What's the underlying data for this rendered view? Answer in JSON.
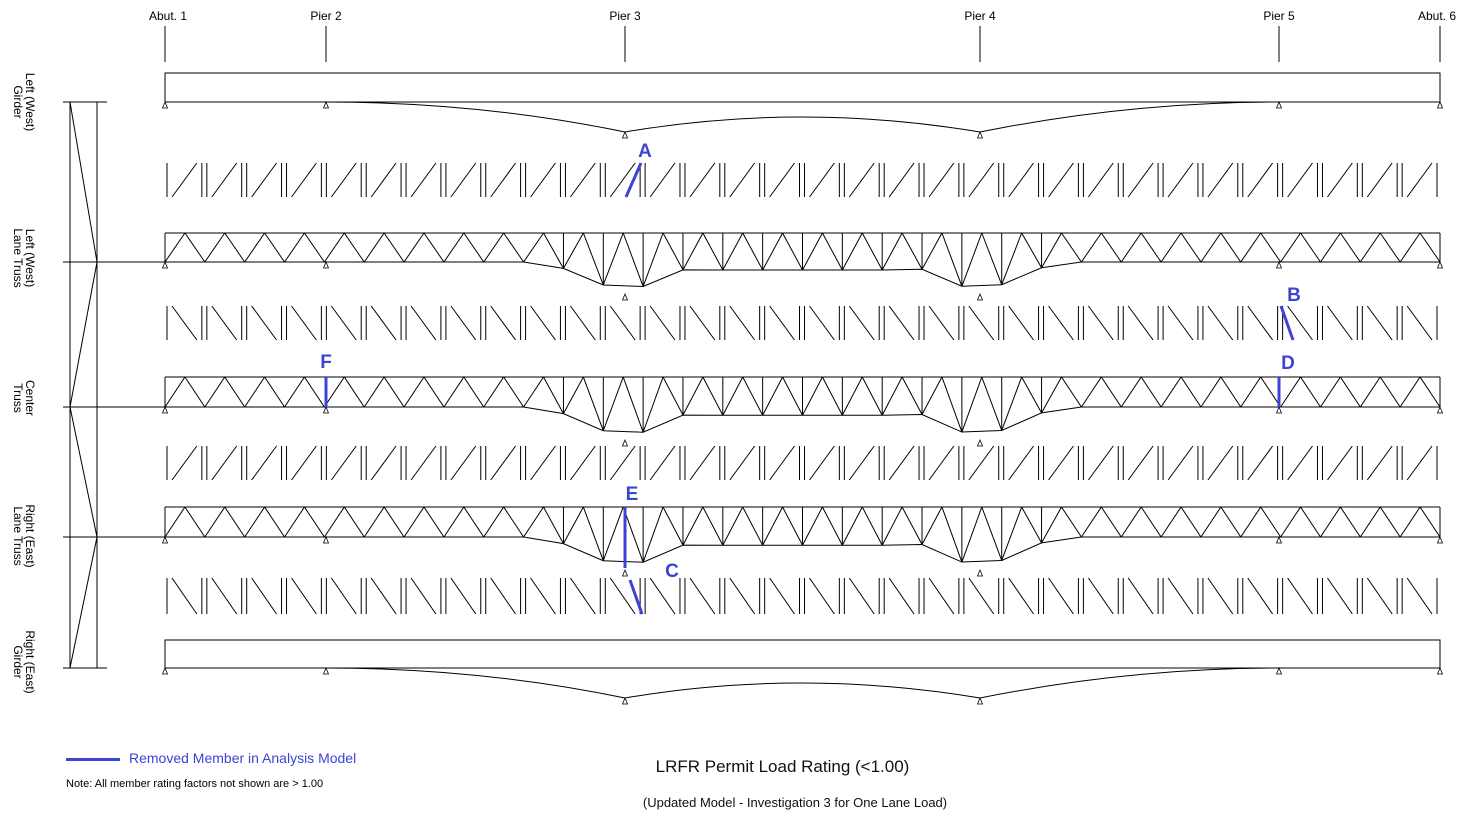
{
  "supports": [
    "Abut. 1",
    "Pier 2",
    "Pier 3",
    "Pier 4",
    "Pier 5",
    "Abut. 6"
  ],
  "row_labels": [
    [
      "Left (West)",
      "Girder"
    ],
    [
      "Left (West)",
      "Lane Truss"
    ],
    [
      "Center",
      "Truss"
    ],
    [
      "Right (East)",
      "Lane Truss"
    ],
    [
      "Right (East)",
      "Girder"
    ]
  ],
  "callouts": [
    "A",
    "B",
    "C",
    "D",
    "E",
    "F"
  ],
  "legend": {
    "label": "Removed Member in Analysis Model",
    "color": "#3b44d4"
  },
  "note": "Note:  All member rating factors not shown are > 1.00",
  "title": "LRFR Permit Load Rating (<1.00)",
  "subtitle": "(Updated Model - Investigation 3 for One Lane Load)"
}
